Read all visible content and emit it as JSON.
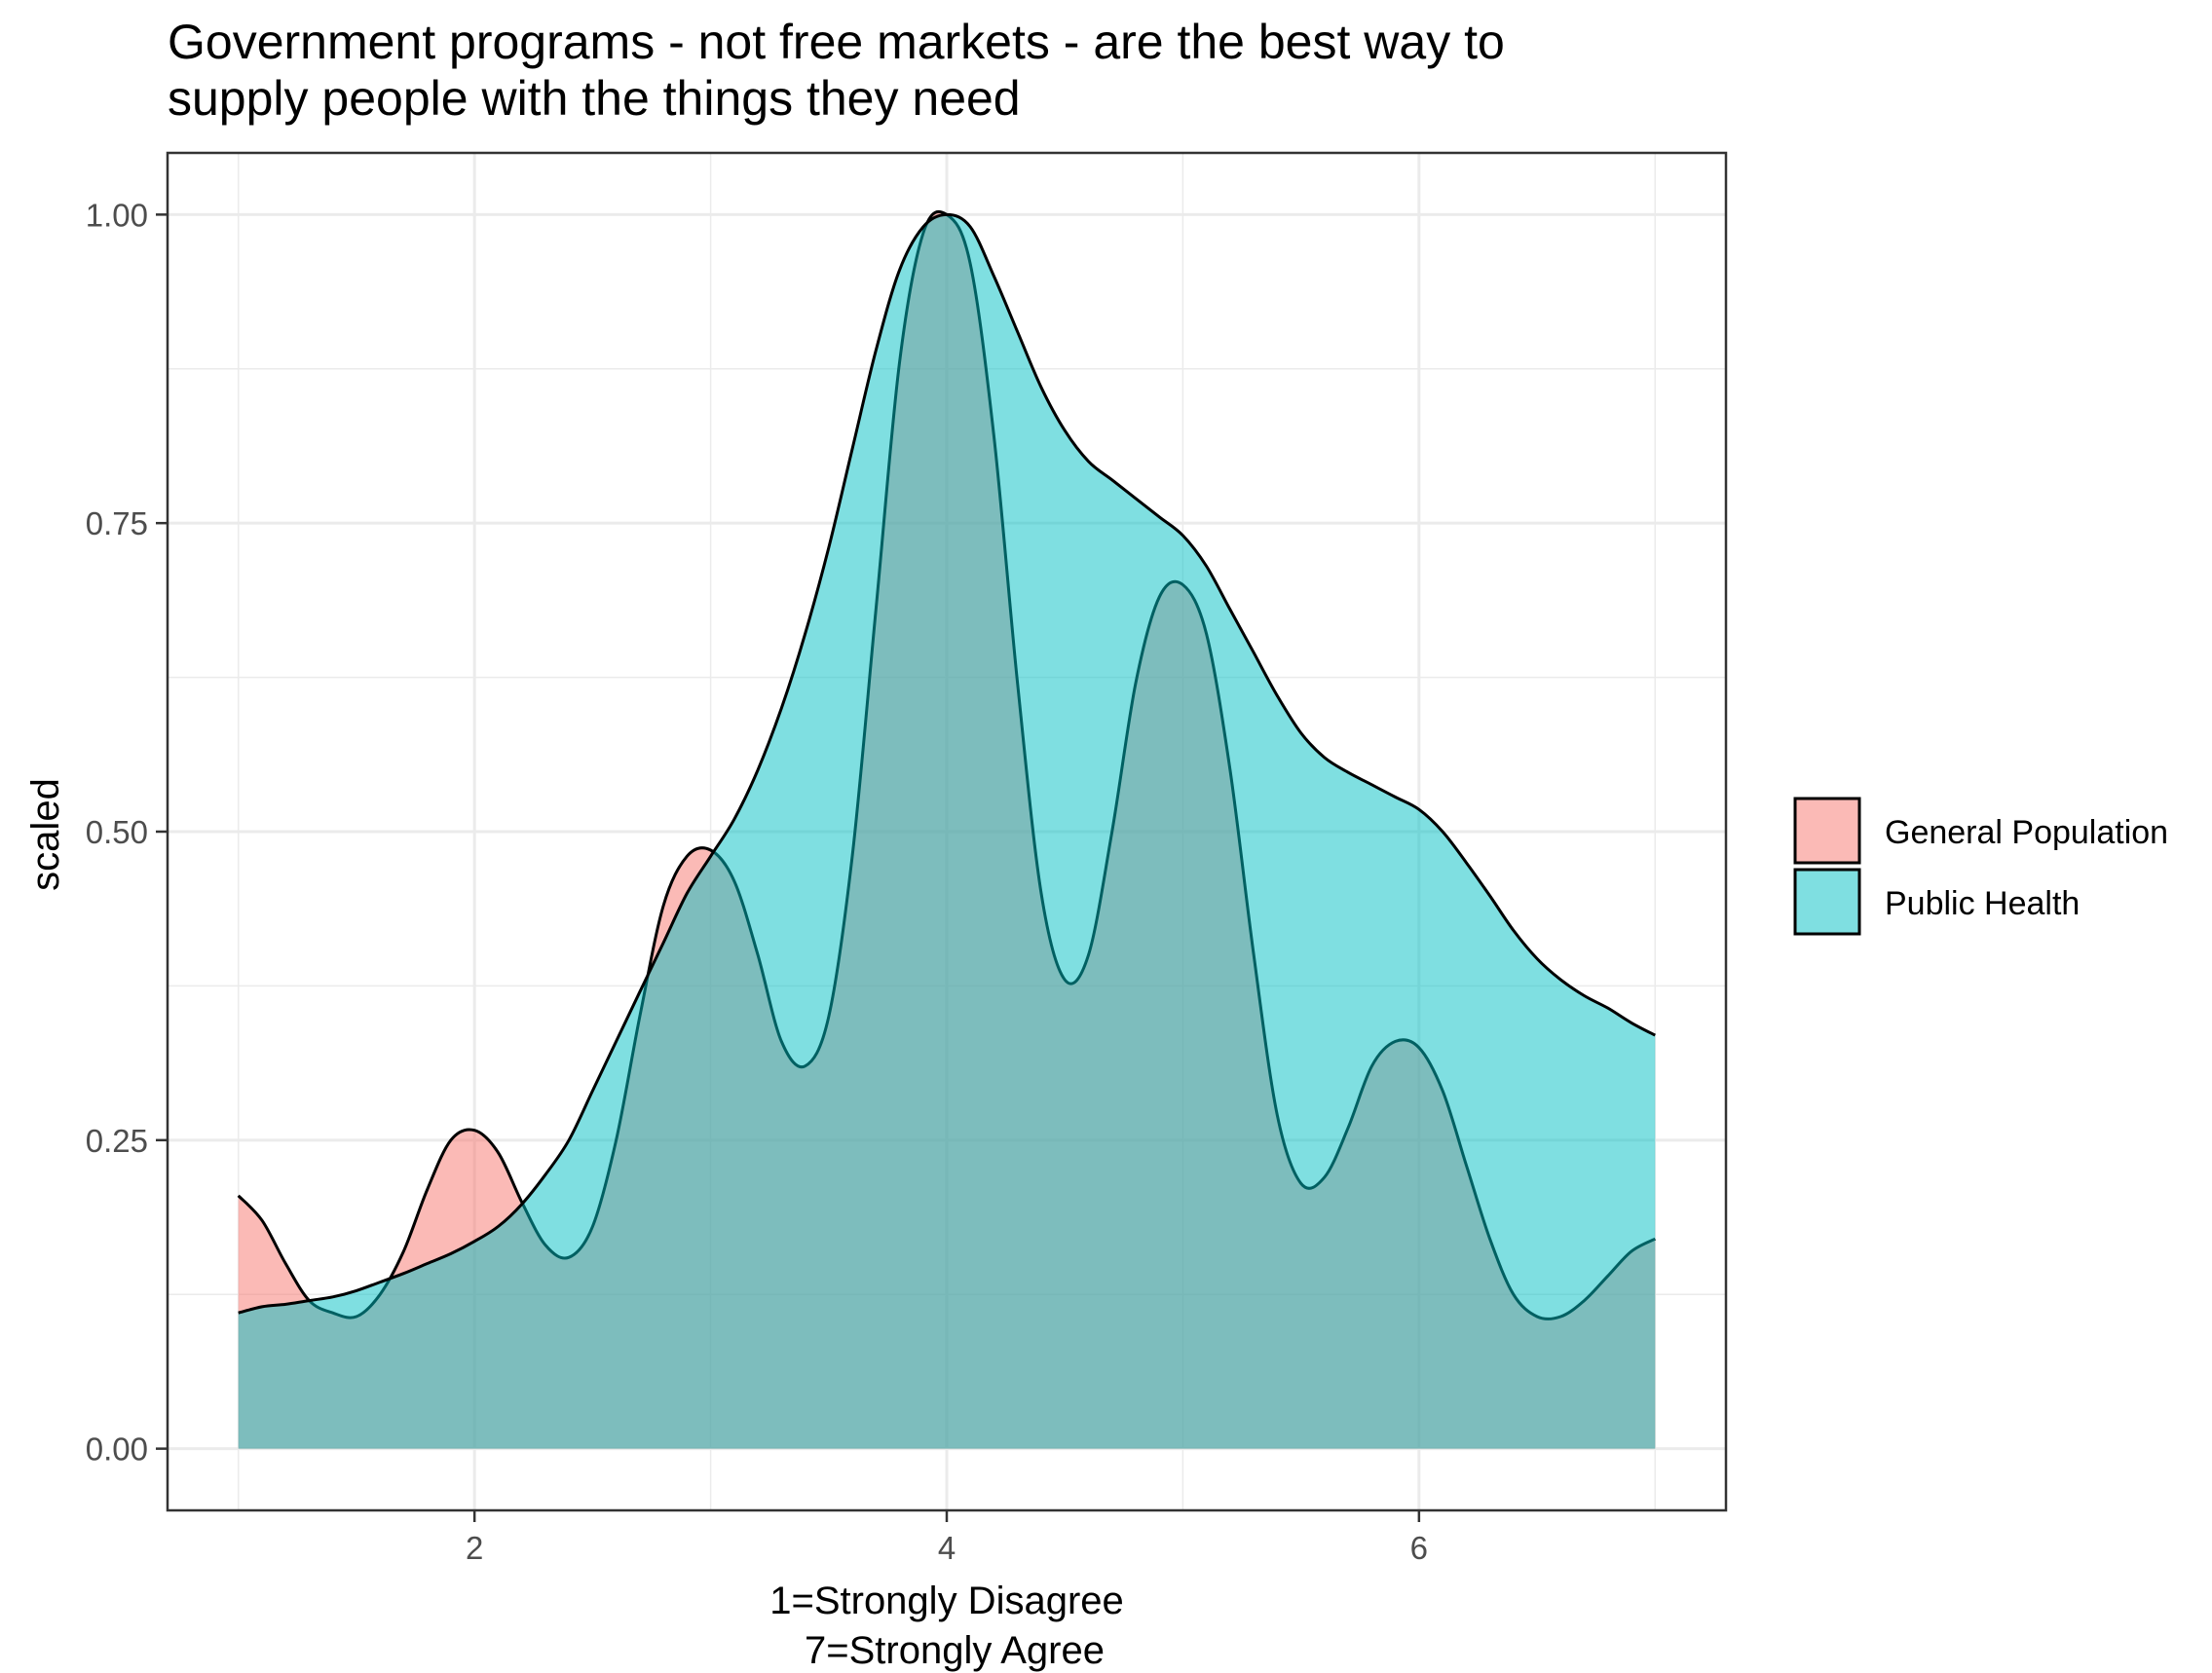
{
  "chart_data": {
    "type": "area",
    "title": "Government programs - not free markets - are the best way to\nsupply people with the things they need",
    "xlabel_lines": [
      "1=Strongly Disagree",
      "7=Strongly Agree"
    ],
    "ylabel": "scaled",
    "xlim": [
      0.7,
      7.3
    ],
    "ylim": [
      -0.05,
      1.05
    ],
    "x_ticks": [
      {
        "value": 2,
        "label": "2"
      },
      {
        "value": 4,
        "label": "4"
      },
      {
        "value": 6,
        "label": "6"
      }
    ],
    "y_ticks": [
      {
        "value": 0,
        "label": "0.00"
      },
      {
        "value": 0.25,
        "label": "0.25"
      },
      {
        "value": 0.5,
        "label": "0.50"
      },
      {
        "value": 0.75,
        "label": "0.75"
      },
      {
        "value": 1,
        "label": "1.00"
      }
    ],
    "grid": true,
    "legend_position": "right",
    "series": [
      {
        "name": "General Population",
        "color": "#F8766D",
        "x": [
          1.0,
          1.1,
          1.2,
          1.3,
          1.4,
          1.5,
          1.6,
          1.7,
          1.8,
          1.9,
          2.0,
          2.1,
          2.2,
          2.3,
          2.4,
          2.5,
          2.6,
          2.7,
          2.8,
          2.9,
          3.0,
          3.1,
          3.2,
          3.3,
          3.4,
          3.5,
          3.6,
          3.7,
          3.8,
          3.9,
          4.0,
          4.1,
          4.2,
          4.3,
          4.4,
          4.5,
          4.6,
          4.7,
          4.8,
          4.9,
          5.0,
          5.1,
          5.2,
          5.3,
          5.4,
          5.5,
          5.6,
          5.7,
          5.8,
          5.9,
          6.0,
          6.1,
          6.2,
          6.3,
          6.4,
          6.5,
          6.6,
          6.7,
          6.8,
          6.9,
          7.0
        ],
        "y": [
          0.205,
          0.185,
          0.15,
          0.12,
          0.11,
          0.107,
          0.125,
          0.16,
          0.21,
          0.25,
          0.258,
          0.24,
          0.2,
          0.165,
          0.155,
          0.18,
          0.25,
          0.35,
          0.44,
          0.48,
          0.485,
          0.46,
          0.4,
          0.33,
          0.31,
          0.35,
          0.48,
          0.68,
          0.88,
          0.985,
          1.0,
          0.96,
          0.82,
          0.62,
          0.45,
          0.38,
          0.4,
          0.5,
          0.62,
          0.69,
          0.7,
          0.66,
          0.55,
          0.4,
          0.27,
          0.215,
          0.22,
          0.26,
          0.31,
          0.33,
          0.325,
          0.29,
          0.23,
          0.17,
          0.125,
          0.107,
          0.107,
          0.12,
          0.14,
          0.16,
          0.17
        ]
      },
      {
        "name": "Public Health",
        "color": "#00BFC4",
        "x": [
          1.0,
          1.1,
          1.2,
          1.3,
          1.4,
          1.5,
          1.6,
          1.7,
          1.8,
          1.9,
          2.0,
          2.1,
          2.2,
          2.3,
          2.4,
          2.5,
          2.6,
          2.7,
          2.8,
          2.9,
          3.0,
          3.1,
          3.2,
          3.3,
          3.4,
          3.5,
          3.6,
          3.7,
          3.8,
          3.9,
          4.0,
          4.1,
          4.2,
          4.3,
          4.4,
          4.5,
          4.6,
          4.7,
          4.8,
          4.9,
          5.0,
          5.1,
          5.2,
          5.3,
          5.4,
          5.5,
          5.6,
          5.7,
          5.8,
          5.9,
          6.0,
          6.1,
          6.2,
          6.3,
          6.4,
          6.5,
          6.6,
          6.7,
          6.8,
          6.9,
          7.0
        ],
        "y": [
          0.11,
          0.115,
          0.117,
          0.12,
          0.123,
          0.128,
          0.135,
          0.142,
          0.15,
          0.158,
          0.168,
          0.18,
          0.198,
          0.222,
          0.25,
          0.29,
          0.33,
          0.37,
          0.41,
          0.45,
          0.48,
          0.51,
          0.55,
          0.6,
          0.66,
          0.73,
          0.81,
          0.89,
          0.955,
          0.99,
          1.0,
          0.99,
          0.95,
          0.905,
          0.86,
          0.825,
          0.8,
          0.785,
          0.77,
          0.755,
          0.74,
          0.715,
          0.68,
          0.645,
          0.61,
          0.58,
          0.56,
          0.548,
          0.538,
          0.528,
          0.518,
          0.5,
          0.475,
          0.448,
          0.42,
          0.397,
          0.38,
          0.367,
          0.357,
          0.345,
          0.335
        ]
      }
    ]
  }
}
